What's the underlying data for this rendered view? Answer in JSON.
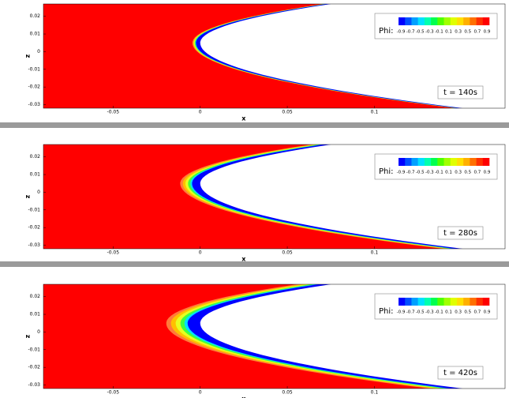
{
  "chart_data": [
    {
      "type": "contour",
      "xlabel": "x",
      "ylabel": "z",
      "annotation": "t = 140s",
      "xlim": [
        -0.09,
        0.175
      ],
      "ylim": [
        -0.032,
        0.027
      ],
      "xticks": [
        -0.05,
        0,
        0.05,
        0.1
      ],
      "yticks": [
        0.02,
        0.01,
        0,
        -0.01,
        -0.02,
        -0.03
      ],
      "colorbar": {
        "label": "Phi:",
        "ticks": [
          -0.9,
          -0.7,
          -0.5,
          -0.3,
          -0.1,
          0.1,
          0.3,
          0.5,
          0.7,
          0.9
        ],
        "colors": [
          "#0000ff",
          "#0050ff",
          "#00a0ff",
          "#00e0ff",
          "#00ffb0",
          "#00ff50",
          "#50ff00",
          "#a0ff00",
          "#e0ff00",
          "#ffe000",
          "#ffb000",
          "#ff7000",
          "#ff3000",
          "#ff0000"
        ]
      }
    },
    {
      "type": "contour",
      "xlabel": "x",
      "ylabel": "z",
      "annotation": "t = 280s",
      "xlim": [
        -0.09,
        0.175
      ],
      "ylim": [
        -0.032,
        0.027
      ],
      "xticks": [
        -0.05,
        0,
        0.05,
        0.1
      ],
      "yticks": [
        0.02,
        0.01,
        0,
        -0.01,
        -0.02,
        -0.03
      ],
      "colorbar": {
        "label": "Phi:",
        "ticks": [
          -0.9,
          -0.7,
          -0.5,
          -0.3,
          -0.1,
          0.1,
          0.3,
          0.5,
          0.7,
          0.9
        ],
        "colors": [
          "#0000ff",
          "#0050ff",
          "#00a0ff",
          "#00e0ff",
          "#00ffb0",
          "#00ff50",
          "#50ff00",
          "#a0ff00",
          "#e0ff00",
          "#ffe000",
          "#ffb000",
          "#ff7000",
          "#ff3000",
          "#ff0000"
        ]
      }
    },
    {
      "type": "contour",
      "xlabel": "x",
      "ylabel": "z",
      "annotation": "t = 420s",
      "xlim": [
        -0.09,
        0.175
      ],
      "ylim": [
        -0.032,
        0.027
      ],
      "xticks": [
        -0.05,
        0,
        0.05,
        0.1
      ],
      "yticks": [
        0.02,
        0.01,
        0,
        -0.01,
        -0.02,
        -0.03
      ],
      "colorbar": {
        "label": "Phi:",
        "ticks": [
          -0.9,
          -0.7,
          -0.5,
          -0.3,
          -0.1,
          0.1,
          0.3,
          0.5,
          0.7,
          0.9
        ],
        "colors": [
          "#0000ff",
          "#0050ff",
          "#00a0ff",
          "#00e0ff",
          "#00ffb0",
          "#00ff50",
          "#50ff00",
          "#a0ff00",
          "#e0ff00",
          "#ffe000",
          "#ffb000",
          "#ff7000",
          "#ff3000",
          "#ff0000"
        ]
      }
    }
  ]
}
